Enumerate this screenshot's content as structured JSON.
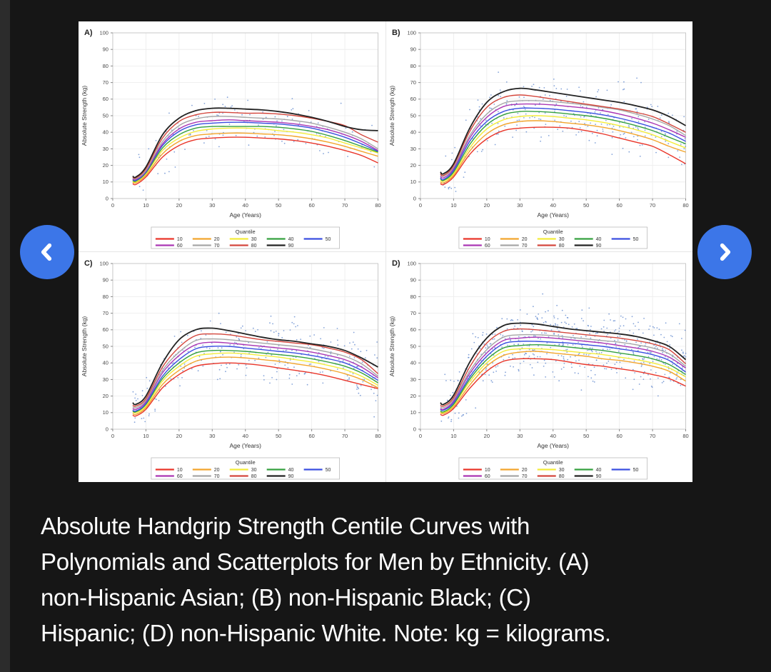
{
  "theme": {
    "background": "#161616",
    "left_strip": "#2c2c2c",
    "figure_background": "#ffffff",
    "nav_button_blue": "#3c76e8",
    "caption_color": "#ffffff",
    "scatter_blue": "#5b84cc"
  },
  "carousel": {
    "prev_icon": "chevron-left",
    "next_icon": "chevron-right"
  },
  "caption": {
    "lines": [
      "Absolute Handgrip Strength Centile Curves with",
      "Polynomials and Scatterplots for Men by Ethnicity. (A)",
      "non-Hispanic Asian; (B) non-Hispanic Black; (C)",
      "Hispanic; (D) non-Hispanic White. Note: kg = kilograms."
    ]
  },
  "chart_data": [
    {
      "type": "line",
      "panel_label": "A)",
      "xlabel": "Age (Years)",
      "ylabel": "Absolute Strength (kg)",
      "xlim": [
        0,
        80
      ],
      "ylim": [
        0,
        100
      ],
      "xticks": [
        0,
        10,
        20,
        30,
        40,
        50,
        60,
        70,
        80
      ],
      "yticks": [
        0,
        10,
        20,
        30,
        40,
        50,
        60,
        70,
        80,
        90,
        100
      ],
      "grid": true,
      "legend_title": "Quantile",
      "legend_position": "below",
      "x": [
        6,
        7,
        10,
        15,
        20,
        25,
        30,
        35,
        40,
        45,
        50,
        55,
        60,
        65,
        70,
        75,
        80
      ],
      "series": [
        {
          "name": "10",
          "color": "#e93529",
          "values": [
            9,
            8.5,
            13,
            25,
            32,
            35.5,
            36.5,
            37,
            37,
            36.5,
            36,
            35,
            33.5,
            31.5,
            29,
            26,
            21.5
          ]
        },
        {
          "name": "20",
          "color": "#f2a52c",
          "values": [
            10,
            9.5,
            14,
            27,
            34.5,
            38,
            39,
            39.5,
            39.5,
            39,
            38.5,
            37.5,
            36,
            34,
            31.5,
            28.5,
            25.5
          ]
        },
        {
          "name": "30",
          "color": "#f3ec3b",
          "values": [
            10.5,
            10,
            15,
            29,
            36.5,
            40.5,
            42,
            42.5,
            42.5,
            42,
            41,
            40,
            38.5,
            36.5,
            33.5,
            30.5,
            27.5
          ]
        },
        {
          "name": "40",
          "color": "#35a03f",
          "values": [
            11,
            10.5,
            15.5,
            30.5,
            38.5,
            42.5,
            43.5,
            43.5,
            43.5,
            43.5,
            43,
            42,
            40.5,
            38,
            35,
            31.5,
            28
          ]
        },
        {
          "name": "50",
          "color": "#3a4fe0",
          "values": [
            11.5,
            11,
            16,
            32,
            40.5,
            44.5,
            45.5,
            46,
            46,
            45.5,
            45,
            44,
            42.5,
            40,
            37,
            33,
            28.5
          ]
        },
        {
          "name": "60",
          "color": "#aa36b4",
          "values": [
            12,
            11.5,
            16.5,
            33,
            42,
            46,
            47,
            47.5,
            47,
            46.5,
            46,
            45,
            43.5,
            41.5,
            38.5,
            34.5,
            29
          ]
        },
        {
          "name": "70",
          "color": "#a6a6a6",
          "values": [
            12.5,
            12,
            17,
            34.5,
            44,
            48,
            49.5,
            49.5,
            49,
            48.5,
            48,
            47,
            45.5,
            43,
            40,
            36,
            30
          ]
        },
        {
          "name": "80",
          "color": "#d4473d",
          "values": [
            13,
            12.5,
            18,
            36.5,
            46.5,
            50.5,
            52,
            52,
            51.5,
            51.5,
            51,
            50,
            48.5,
            46.5,
            44,
            38.5,
            34
          ]
        },
        {
          "name": "90",
          "color": "#232323",
          "values": [
            13.5,
            13,
            19,
            38.5,
            48.5,
            53,
            54.5,
            54.5,
            54,
            53.5,
            52.5,
            51,
            49,
            46.5,
            43.5,
            41.5,
            41
          ]
        }
      ],
      "scatter": {
        "color": "#5b84cc",
        "count": 150,
        "seed": 101,
        "spread": 8
      }
    },
    {
      "type": "line",
      "panel_label": "B)",
      "xlabel": "Age (Years)",
      "ylabel": "Absolute Strength (kg)",
      "xlim": [
        0,
        80
      ],
      "ylim": [
        0,
        100
      ],
      "xticks": [
        0,
        10,
        20,
        30,
        40,
        50,
        60,
        70,
        80
      ],
      "yticks": [
        0,
        10,
        20,
        30,
        40,
        50,
        60,
        70,
        80,
        90,
        100
      ],
      "grid": true,
      "legend_title": "Quantile",
      "legend_position": "below",
      "x": [
        6,
        7,
        10,
        15,
        20,
        25,
        30,
        35,
        40,
        45,
        50,
        55,
        60,
        65,
        70,
        75,
        80
      ],
      "series": [
        {
          "name": "10",
          "color": "#e93529",
          "values": [
            9,
            8.5,
            13,
            27,
            36,
            41,
            42.5,
            43,
            43,
            42.5,
            41,
            39,
            36.5,
            34,
            31.5,
            26.5,
            21
          ]
        },
        {
          "name": "20",
          "color": "#f2a52c",
          "values": [
            10,
            9.5,
            14,
            29,
            39,
            44.5,
            46.5,
            47,
            46.5,
            45.5,
            44.5,
            43,
            41,
            38.5,
            35.5,
            31.5,
            28
          ]
        },
        {
          "name": "30",
          "color": "#f3ec3b",
          "values": [
            11,
            10.5,
            15,
            31,
            42,
            47.5,
            49.5,
            50,
            49.5,
            48.5,
            47.5,
            46,
            44,
            41.5,
            38.5,
            34.5,
            30.5
          ]
        },
        {
          "name": "40",
          "color": "#35a03f",
          "values": [
            12,
            11,
            16,
            33,
            44.5,
            50.5,
            52.5,
            52.5,
            52,
            51,
            50,
            48.5,
            46.5,
            44,
            41,
            37,
            33
          ]
        },
        {
          "name": "50",
          "color": "#3a4fe0",
          "values": [
            12.5,
            11.5,
            17,
            35,
            46.5,
            52.5,
            54.5,
            54.5,
            54,
            53,
            52,
            50.5,
            48.5,
            46,
            43,
            39.5,
            34.5
          ]
        },
        {
          "name": "60",
          "color": "#aa36b4",
          "values": [
            13.5,
            12.5,
            18,
            37,
            49,
            55.5,
            57,
            57,
            56.5,
            55.5,
            54.5,
            53,
            51,
            48.5,
            45.5,
            41.5,
            37
          ]
        },
        {
          "name": "70",
          "color": "#a6a6a6",
          "values": [
            14.5,
            13.5,
            19,
            38.5,
            51,
            57.5,
            59,
            59,
            58.5,
            57.5,
            56.5,
            55,
            53.5,
            51,
            48,
            44,
            38
          ]
        },
        {
          "name": "80",
          "color": "#d4473d",
          "values": [
            15,
            14,
            20,
            41,
            55,
            61,
            62.5,
            61.5,
            60,
            58.5,
            57,
            55.5,
            54,
            52,
            49.5,
            45,
            40
          ]
        },
        {
          "name": "90",
          "color": "#232323",
          "values": [
            16,
            15,
            21,
            43,
            58,
            64.5,
            66.5,
            65.5,
            64,
            62.5,
            61,
            59.5,
            58,
            56,
            53.5,
            49.5,
            44
          ]
        }
      ],
      "scatter": {
        "color": "#5b84cc",
        "count": 330,
        "seed": 202,
        "spread": 9
      }
    },
    {
      "type": "line",
      "panel_label": "C)",
      "xlabel": "Age (Years)",
      "ylabel": "Absolute Strength (kg)",
      "xlim": [
        0,
        80
      ],
      "ylim": [
        0,
        100
      ],
      "xticks": [
        0,
        10,
        20,
        30,
        40,
        50,
        60,
        70,
        80
      ],
      "yticks": [
        0,
        10,
        20,
        30,
        40,
        50,
        60,
        70,
        80,
        90,
        100
      ],
      "grid": true,
      "legend_title": "Quantile",
      "legend_position": "below",
      "x": [
        6,
        7,
        10,
        15,
        20,
        25,
        30,
        35,
        40,
        45,
        50,
        55,
        60,
        65,
        70,
        75,
        80
      ],
      "series": [
        {
          "name": "10",
          "color": "#e93529",
          "values": [
            8.5,
            8,
            12,
            25,
            33,
            38,
            39.5,
            40,
            39.5,
            38.5,
            37,
            35.5,
            34,
            32,
            29.5,
            27,
            24.5
          ]
        },
        {
          "name": "20",
          "color": "#f2a52c",
          "values": [
            9.5,
            9,
            13,
            27,
            35.5,
            41,
            43,
            43.5,
            43,
            42,
            41,
            39.5,
            38,
            36,
            33.5,
            30,
            25
          ]
        },
        {
          "name": "30",
          "color": "#f3ec3b",
          "values": [
            10.5,
            10,
            14,
            29,
            38,
            44,
            45.5,
            46,
            45.5,
            44.5,
            43.5,
            42,
            40.5,
            38.5,
            36,
            32,
            26.5
          ]
        },
        {
          "name": "40",
          "color": "#35a03f",
          "values": [
            11,
            10.5,
            15,
            30.5,
            40,
            46,
            47.5,
            47.5,
            47,
            46,
            45,
            44,
            42.5,
            40.5,
            38,
            34,
            28
          ]
        },
        {
          "name": "50",
          "color": "#3a4fe0",
          "values": [
            11.5,
            11,
            15.5,
            32,
            42,
            48.5,
            50,
            50,
            49,
            48,
            47,
            46,
            44.5,
            42.5,
            40,
            35.5,
            29.5
          ]
        },
        {
          "name": "60",
          "color": "#aa36b4",
          "values": [
            12.5,
            12,
            16.5,
            34,
            44.5,
            51,
            52.5,
            52,
            51,
            50,
            49,
            48,
            46.5,
            44.5,
            42,
            37.5,
            31
          ]
        },
        {
          "name": "70",
          "color": "#a6a6a6",
          "values": [
            13.5,
            13,
            17.5,
            35.5,
            46.5,
            53.5,
            54.5,
            54,
            53,
            52,
            51,
            50,
            48.5,
            46.5,
            44,
            39.5,
            32
          ]
        },
        {
          "name": "80",
          "color": "#d4473d",
          "values": [
            14.5,
            14,
            18.5,
            37.5,
            49.5,
            56.5,
            57.5,
            57,
            55.5,
            54,
            53,
            52,
            51,
            49,
            46.5,
            42,
            33.5
          ]
        },
        {
          "name": "90",
          "color": "#232323",
          "values": [
            16,
            15,
            20,
            40,
            54,
            60,
            61,
            59.5,
            57.5,
            55.5,
            54,
            53,
            51.5,
            50,
            47.5,
            43,
            37.5
          ]
        }
      ],
      "scatter": {
        "color": "#5b84cc",
        "count": 330,
        "seed": 303,
        "spread": 9
      }
    },
    {
      "type": "line",
      "panel_label": "D)",
      "xlabel": "Age (Years)",
      "ylabel": "Absolute Strength (kg)",
      "xlim": [
        0,
        80
      ],
      "ylim": [
        0,
        100
      ],
      "xticks": [
        0,
        10,
        20,
        30,
        40,
        50,
        60,
        70,
        80
      ],
      "yticks": [
        0,
        10,
        20,
        30,
        40,
        50,
        60,
        70,
        80,
        90,
        100
      ],
      "grid": true,
      "legend_title": "Quantile",
      "legend_position": "below",
      "x": [
        6,
        7,
        10,
        15,
        20,
        25,
        30,
        35,
        40,
        45,
        50,
        55,
        60,
        65,
        70,
        75,
        80
      ],
      "series": [
        {
          "name": "10",
          "color": "#e93529",
          "values": [
            9,
            8.5,
            12.5,
            25,
            35,
            41,
            42.5,
            42.5,
            42,
            40.5,
            39,
            38,
            36.5,
            35,
            33,
            30.5,
            26
          ]
        },
        {
          "name": "20",
          "color": "#f2a52c",
          "values": [
            10,
            9.5,
            13.5,
            27,
            38,
            44.5,
            46.5,
            47,
            46,
            45,
            44,
            42.5,
            41.5,
            40,
            38,
            35,
            29
          ]
        },
        {
          "name": "30",
          "color": "#f3ec3b",
          "values": [
            10.5,
            10,
            14.5,
            29,
            40,
            47,
            48.5,
            48.5,
            48,
            47,
            46,
            45,
            43.5,
            42,
            40,
            37,
            31.5
          ]
        },
        {
          "name": "40",
          "color": "#35a03f",
          "values": [
            11,
            10.5,
            15,
            30.5,
            42,
            49,
            50.5,
            51,
            50.5,
            49.5,
            48.5,
            47.5,
            46,
            44.5,
            42.5,
            39,
            33
          ]
        },
        {
          "name": "50",
          "color": "#3a4fe0",
          "values": [
            12,
            11.5,
            16,
            32,
            44,
            51.5,
            53,
            53,
            52.5,
            52,
            51,
            50,
            48.5,
            47,
            45,
            41.5,
            34.5
          ]
        },
        {
          "name": "60",
          "color": "#aa36b4",
          "values": [
            12.5,
            12,
            17,
            34,
            46,
            53.5,
            55,
            55.5,
            55,
            54,
            53,
            52,
            50.5,
            49,
            47,
            43.5,
            37
          ]
        },
        {
          "name": "70",
          "color": "#a6a6a6",
          "values": [
            13.5,
            13,
            18,
            35.5,
            48,
            55.5,
            57,
            57,
            56.5,
            55.5,
            54.5,
            53.5,
            52.5,
            51,
            49,
            45.5,
            38
          ]
        },
        {
          "name": "80",
          "color": "#d4473d",
          "values": [
            14.5,
            14,
            19,
            38,
            52,
            59,
            60.5,
            60,
            59,
            58,
            57,
            56,
            55,
            53.5,
            51.5,
            48,
            39.5
          ]
        },
        {
          "name": "90",
          "color": "#232323",
          "values": [
            16,
            15,
            20.5,
            41,
            55,
            62.5,
            64,
            63.5,
            62,
            60.5,
            59.5,
            58.5,
            57.5,
            56,
            53.5,
            50,
            42
          ]
        }
      ],
      "scatter": {
        "color": "#5b84cc",
        "count": 620,
        "seed": 404,
        "spread": 9.5
      }
    }
  ]
}
